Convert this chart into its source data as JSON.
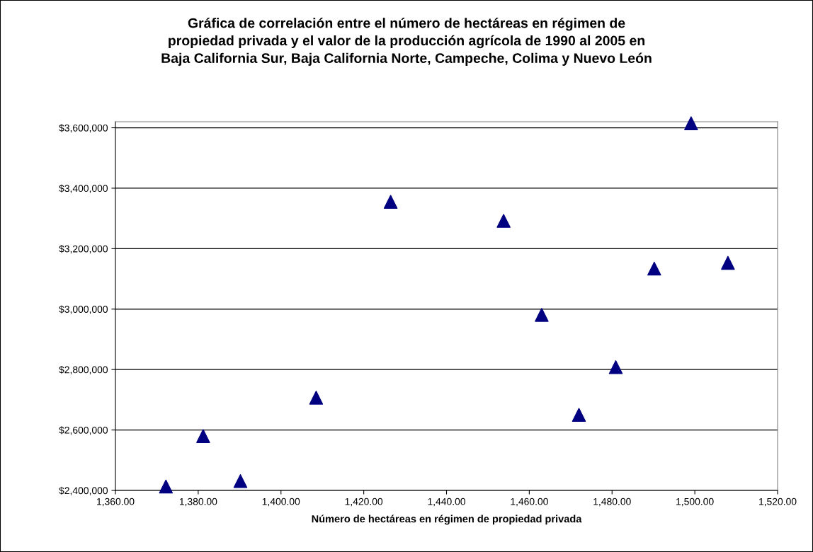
{
  "chart_data": {
    "type": "scatter",
    "title": "Gráfica de correlación entre el número de hectáreas en régimen de\npropiedad privada y el valor de la producción agrícola de 1990 al 2005 en\nBaja California Sur, Baja California Norte, Campeche, Colima y Nuevo León",
    "xlabel": "Número de hectáreas en régimen de propiedad privada",
    "x": [
      1372.2,
      1381.2,
      1390.2,
      1408.5,
      1426.5,
      1453.8,
      1463.0,
      1472.0,
      1480.9,
      1490.2,
      1499.1,
      1508.0
    ],
    "series": [
      {
        "color": "#000080",
        "values": [
          2413000,
          2580000,
          2431000,
          2707000,
          3355000,
          3292000,
          2981000,
          2650000,
          2808000,
          3134000,
          3615000,
          3153000
        ]
      }
    ],
    "marker": "triangle",
    "grid": "y",
    "xlim": [
      1360,
      1520
    ],
    "xticks": [
      {
        "value": 1360,
        "label": "1,360.00"
      },
      {
        "value": 1380,
        "label": "1,380.00"
      },
      {
        "value": 1400,
        "label": "1,400.00"
      },
      {
        "value": 1420,
        "label": "1,420.00"
      },
      {
        "value": 1440,
        "label": "1,440.00"
      },
      {
        "value": 1460,
        "label": "1,460.00"
      },
      {
        "value": 1480,
        "label": "1,480.00"
      },
      {
        "value": 1500,
        "label": "1,500.00"
      },
      {
        "value": 1520,
        "label": "1,520.00"
      }
    ],
    "ylim": [
      2400000,
      3620000
    ],
    "yticks": [
      {
        "value": 2400000,
        "label": "$2,400,000"
      },
      {
        "value": 2600000,
        "label": "$2,600,000"
      },
      {
        "value": 2800000,
        "label": "$2,800,000"
      },
      {
        "value": 3000000,
        "label": "$3,000,000"
      },
      {
        "value": 3200000,
        "label": "$3,200,000"
      },
      {
        "value": 3400000,
        "label": "$3,400,000"
      },
      {
        "value": 3600000,
        "label": "$3,600,000"
      }
    ]
  }
}
